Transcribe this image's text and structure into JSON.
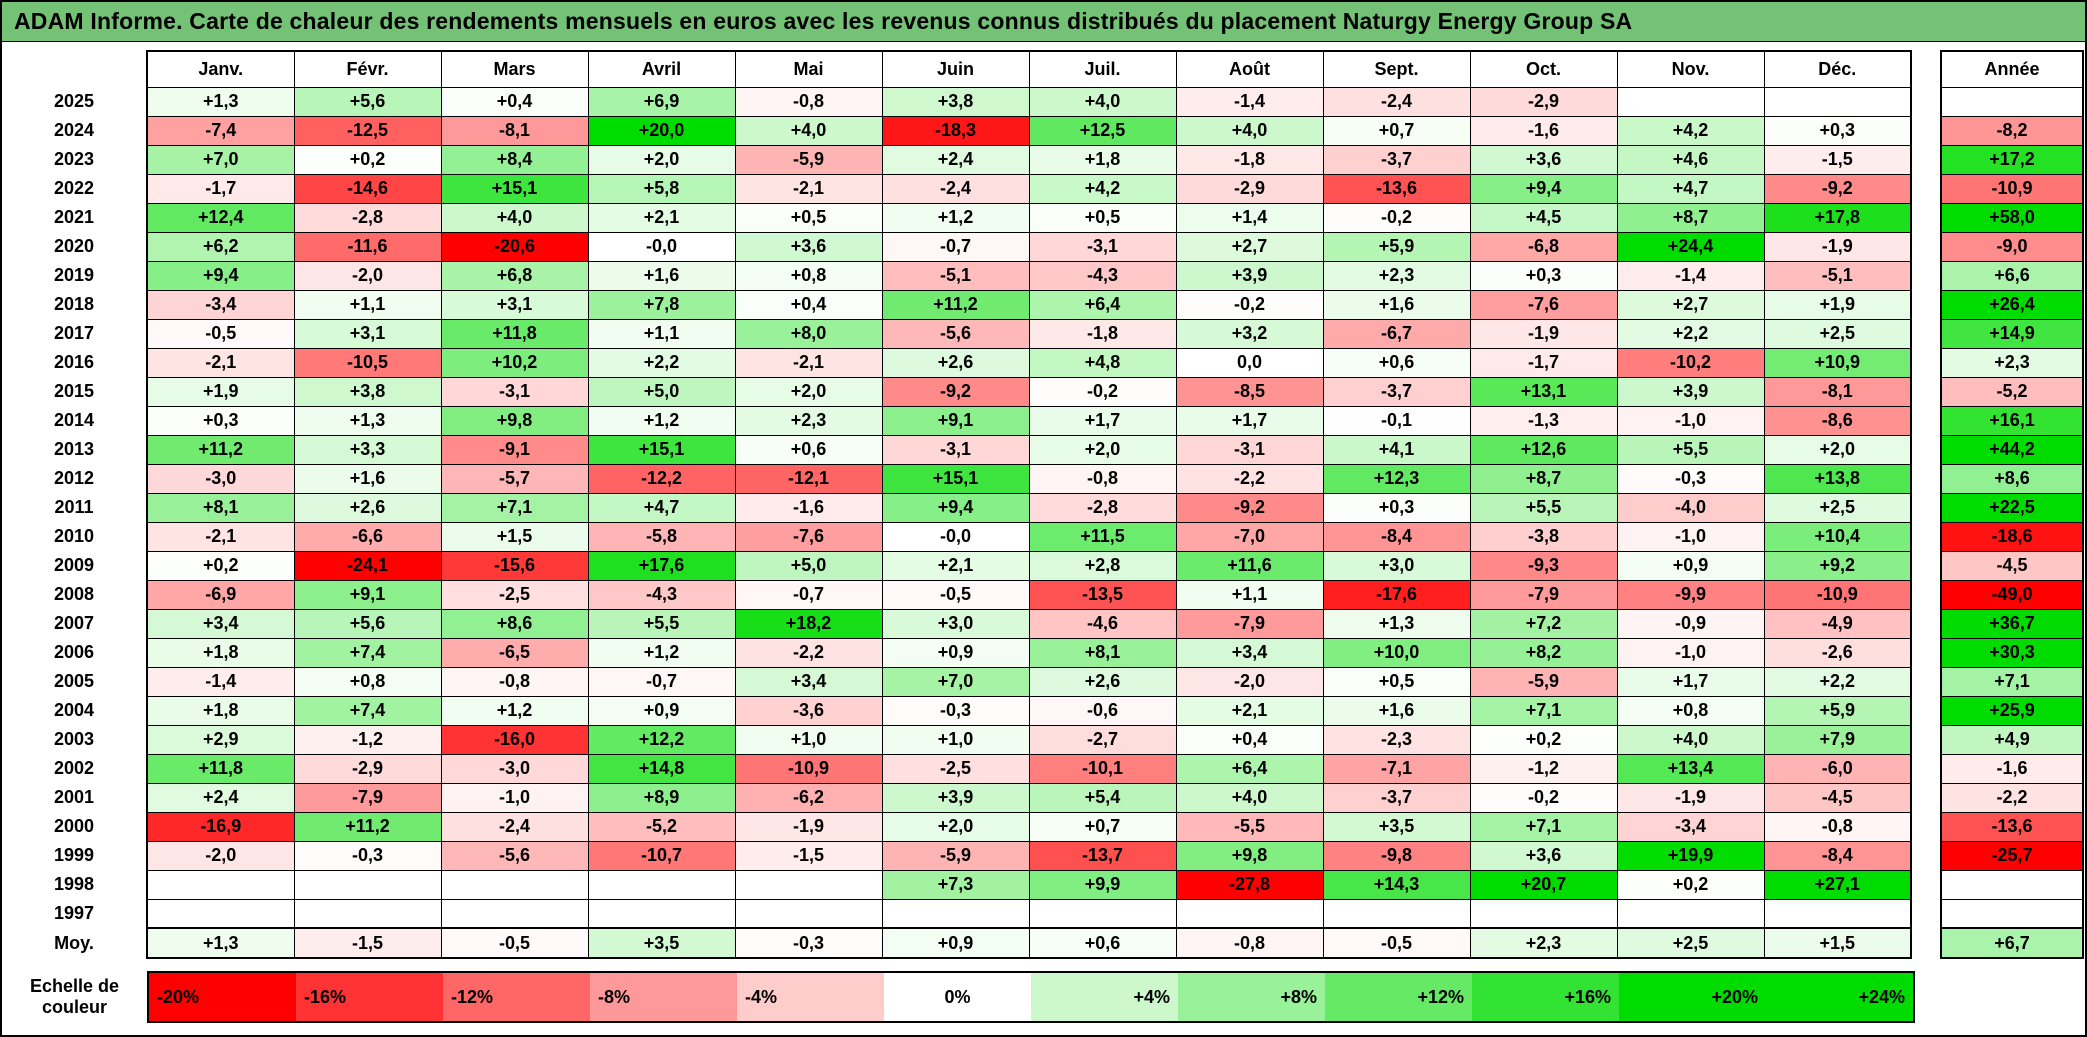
{
  "title": "ADAM Informe. Carte de chaleur des rendements mensuels en euros avec les revenus connus distribués du placement Naturgy Energy Group SA",
  "chart_data": {
    "type": "heatmap",
    "columns": [
      "Janv.",
      "Févr.",
      "Mars",
      "Avril",
      "Mai",
      "Juin",
      "Juil.",
      "Août",
      "Sept.",
      "Oct.",
      "Nov.",
      "Déc."
    ],
    "annual_label": "Année",
    "rows": [
      {
        "year": "2025",
        "values": [
          "+1,3",
          "+5,6",
          "+0,4",
          "+6,9",
          "-0,8",
          "+3,8",
          "+4,0",
          "-1,4",
          "-2,4",
          "-2,9",
          "",
          ""
        ],
        "annual": ""
      },
      {
        "year": "2024",
        "values": [
          "-7,4",
          "-12,5",
          "-8,1",
          "+20,0",
          "+4,0",
          "-18,3",
          "+12,5",
          "+4,0",
          "+0,7",
          "-1,6",
          "+4,2",
          "+0,3"
        ],
        "annual": "-8,2"
      },
      {
        "year": "2023",
        "values": [
          "+7,0",
          "+0,2",
          "+8,4",
          "+2,0",
          "-5,9",
          "+2,4",
          "+1,8",
          "-1,8",
          "-3,7",
          "+3,6",
          "+4,6",
          "-1,5"
        ],
        "annual": "+17,2"
      },
      {
        "year": "2022",
        "values": [
          "-1,7",
          "-14,6",
          "+15,1",
          "+5,8",
          "-2,1",
          "-2,4",
          "+4,2",
          "-2,9",
          "-13,6",
          "+9,4",
          "+4,7",
          "-9,2"
        ],
        "annual": "-10,9"
      },
      {
        "year": "2021",
        "values": [
          "+12,4",
          "-2,8",
          "+4,0",
          "+2,1",
          "+0,5",
          "+1,2",
          "+0,5",
          "+1,4",
          "-0,2",
          "+4,5",
          "+8,7",
          "+17,8"
        ],
        "annual": "+58,0"
      },
      {
        "year": "2020",
        "values": [
          "+6,2",
          "-11,6",
          "-20,6",
          "-0,0",
          "+3,6",
          "-0,7",
          "-3,1",
          "+2,7",
          "+5,9",
          "-6,8",
          "+24,4",
          "-1,9"
        ],
        "annual": "-9,0"
      },
      {
        "year": "2019",
        "values": [
          "+9,4",
          "-2,0",
          "+6,8",
          "+1,6",
          "+0,8",
          "-5,1",
          "-4,3",
          "+3,9",
          "+2,3",
          "+0,3",
          "-1,4",
          "-5,1"
        ],
        "annual": "+6,6"
      },
      {
        "year": "2018",
        "values": [
          "-3,4",
          "+1,1",
          "+3,1",
          "+7,8",
          "+0,4",
          "+11,2",
          "+6,4",
          "-0,2",
          "+1,6",
          "-7,6",
          "+2,7",
          "+1,9"
        ],
        "annual": "+26,4"
      },
      {
        "year": "2017",
        "values": [
          "-0,5",
          "+3,1",
          "+11,8",
          "+1,1",
          "+8,0",
          "-5,6",
          "-1,8",
          "+3,2",
          "-6,7",
          "-1,9",
          "+2,2",
          "+2,5"
        ],
        "annual": "+14,9"
      },
      {
        "year": "2016",
        "values": [
          "-2,1",
          "-10,5",
          "+10,2",
          "+2,2",
          "-2,1",
          "+2,6",
          "+4,8",
          "0,0",
          "+0,6",
          "-1,7",
          "-10,2",
          "+10,9"
        ],
        "annual": "+2,3"
      },
      {
        "year": "2015",
        "values": [
          "+1,9",
          "+3,8",
          "-3,1",
          "+5,0",
          "+2,0",
          "-9,2",
          "-0,2",
          "-8,5",
          "-3,7",
          "+13,1",
          "+3,9",
          "-8,1"
        ],
        "annual": "-5,2"
      },
      {
        "year": "2014",
        "values": [
          "+0,3",
          "+1,3",
          "+9,8",
          "+1,2",
          "+2,3",
          "+9,1",
          "+1,7",
          "+1,7",
          "-0,1",
          "-1,3",
          "-1,0",
          "-8,6"
        ],
        "annual": "+16,1"
      },
      {
        "year": "2013",
        "values": [
          "+11,2",
          "+3,3",
          "-9,1",
          "+15,1",
          "+0,6",
          "-3,1",
          "+2,0",
          "-3,1",
          "+4,1",
          "+12,6",
          "+5,5",
          "+2,0"
        ],
        "annual": "+44,2"
      },
      {
        "year": "2012",
        "values": [
          "-3,0",
          "+1,6",
          "-5,7",
          "-12,2",
          "-12,1",
          "+15,1",
          "-0,8",
          "-2,2",
          "+12,3",
          "+8,7",
          "-0,3",
          "+13,8"
        ],
        "annual": "+8,6"
      },
      {
        "year": "2011",
        "values": [
          "+8,1",
          "+2,6",
          "+7,1",
          "+4,7",
          "-1,6",
          "+9,4",
          "-2,8",
          "-9,2",
          "+0,3",
          "+5,5",
          "-4,0",
          "+2,5"
        ],
        "annual": "+22,5"
      },
      {
        "year": "2010",
        "values": [
          "-2,1",
          "-6,6",
          "+1,5",
          "-5,8",
          "-7,6",
          "-0,0",
          "+11,5",
          "-7,0",
          "-8,4",
          "-3,8",
          "-1,0",
          "+10,4"
        ],
        "annual": "-18,6"
      },
      {
        "year": "2009",
        "values": [
          "+0,2",
          "-24,1",
          "-15,6",
          "+17,6",
          "+5,0",
          "+2,1",
          "+2,8",
          "+11,6",
          "+3,0",
          "-9,3",
          "+0,9",
          "+9,2"
        ],
        "annual": "-4,5"
      },
      {
        "year": "2008",
        "values": [
          "-6,9",
          "+9,1",
          "-2,5",
          "-4,3",
          "-0,7",
          "-0,5",
          "-13,5",
          "+1,1",
          "-17,6",
          "-7,9",
          "-9,9",
          "-10,9"
        ],
        "annual": "-49,0"
      },
      {
        "year": "2007",
        "values": [
          "+3,4",
          "+5,6",
          "+8,6",
          "+5,5",
          "+18,2",
          "+3,0",
          "-4,6",
          "-7,9",
          "+1,3",
          "+7,2",
          "-0,9",
          "-4,9"
        ],
        "annual": "+36,7"
      },
      {
        "year": "2006",
        "values": [
          "+1,8",
          "+7,4",
          "-6,5",
          "+1,2",
          "-2,2",
          "+0,9",
          "+8,1",
          "+3,4",
          "+10,0",
          "+8,2",
          "-1,0",
          "-2,6"
        ],
        "annual": "+30,3"
      },
      {
        "year": "2005",
        "values": [
          "-1,4",
          "+0,8",
          "-0,8",
          "-0,7",
          "+3,4",
          "+7,0",
          "+2,6",
          "-2,0",
          "+0,5",
          "-5,9",
          "+1,7",
          "+2,2"
        ],
        "annual": "+7,1"
      },
      {
        "year": "2004",
        "values": [
          "+1,8",
          "+7,4",
          "+1,2",
          "+0,9",
          "-3,6",
          "-0,3",
          "-0,6",
          "+2,1",
          "+1,6",
          "+7,1",
          "+0,8",
          "+5,9"
        ],
        "annual": "+25,9"
      },
      {
        "year": "2003",
        "values": [
          "+2,9",
          "-1,2",
          "-16,0",
          "+12,2",
          "+1,0",
          "+1,0",
          "-2,7",
          "+0,4",
          "-2,3",
          "+0,2",
          "+4,0",
          "+7,9"
        ],
        "annual": "+4,9"
      },
      {
        "year": "2002",
        "values": [
          "+11,8",
          "-2,9",
          "-3,0",
          "+14,8",
          "-10,9",
          "-2,5",
          "-10,1",
          "+6,4",
          "-7,1",
          "-1,2",
          "+13,4",
          "-6,0"
        ],
        "annual": "-1,6"
      },
      {
        "year": "2001",
        "values": [
          "+2,4",
          "-7,9",
          "-1,0",
          "+8,9",
          "-6,2",
          "+3,9",
          "+5,4",
          "+4,0",
          "-3,7",
          "-0,2",
          "-1,9",
          "-4,5"
        ],
        "annual": "-2,2"
      },
      {
        "year": "2000",
        "values": [
          "-16,9",
          "+11,2",
          "-2,4",
          "-5,2",
          "-1,9",
          "+2,0",
          "+0,7",
          "-5,5",
          "+3,5",
          "+7,1",
          "-3,4",
          "-0,8"
        ],
        "annual": "-13,6"
      },
      {
        "year": "1999",
        "values": [
          "-2,0",
          "-0,3",
          "-5,6",
          "-10,7",
          "-1,5",
          "-5,9",
          "-13,7",
          "+9,8",
          "-9,8",
          "+3,6",
          "+19,9",
          "-8,4"
        ],
        "annual": "-25,7"
      },
      {
        "year": "1998",
        "values": [
          "",
          "",
          "",
          "",
          "",
          "+7,3",
          "+9,9",
          "-27,8",
          "+14,3",
          "+20,7",
          "+0,2",
          "+27,1"
        ],
        "annual": ""
      },
      {
        "year": "1997",
        "values": [
          "",
          "",
          "",
          "",
          "",
          "",
          "",
          "",
          "",
          "",
          "",
          ""
        ],
        "annual": ""
      }
    ],
    "average_row": {
      "label": "Moy.",
      "values": [
        "+1,3",
        "-1,5",
        "-0,5",
        "+3,5",
        "-0,3",
        "+0,9",
        "+0,6",
        "-0,8",
        "-0,5",
        "+2,3",
        "+2,5",
        "+1,5"
      ],
      "annual": "+6,7"
    },
    "scale": {
      "caption": "Echelle de couleur",
      "labels": [
        "-20%",
        "-16%",
        "-12%",
        "-8%",
        "-4%",
        "0%",
        "+4%",
        "+8%",
        "+12%",
        "+16%",
        "+20%",
        "+24%"
      ]
    },
    "colors": {
      "title_bar": "#74c276",
      "negative_max": "#ff0000",
      "positive_max": "#00dc00",
      "neutral": "#ffffff",
      "negative_saturation": -20,
      "positive_saturation": 20
    }
  }
}
